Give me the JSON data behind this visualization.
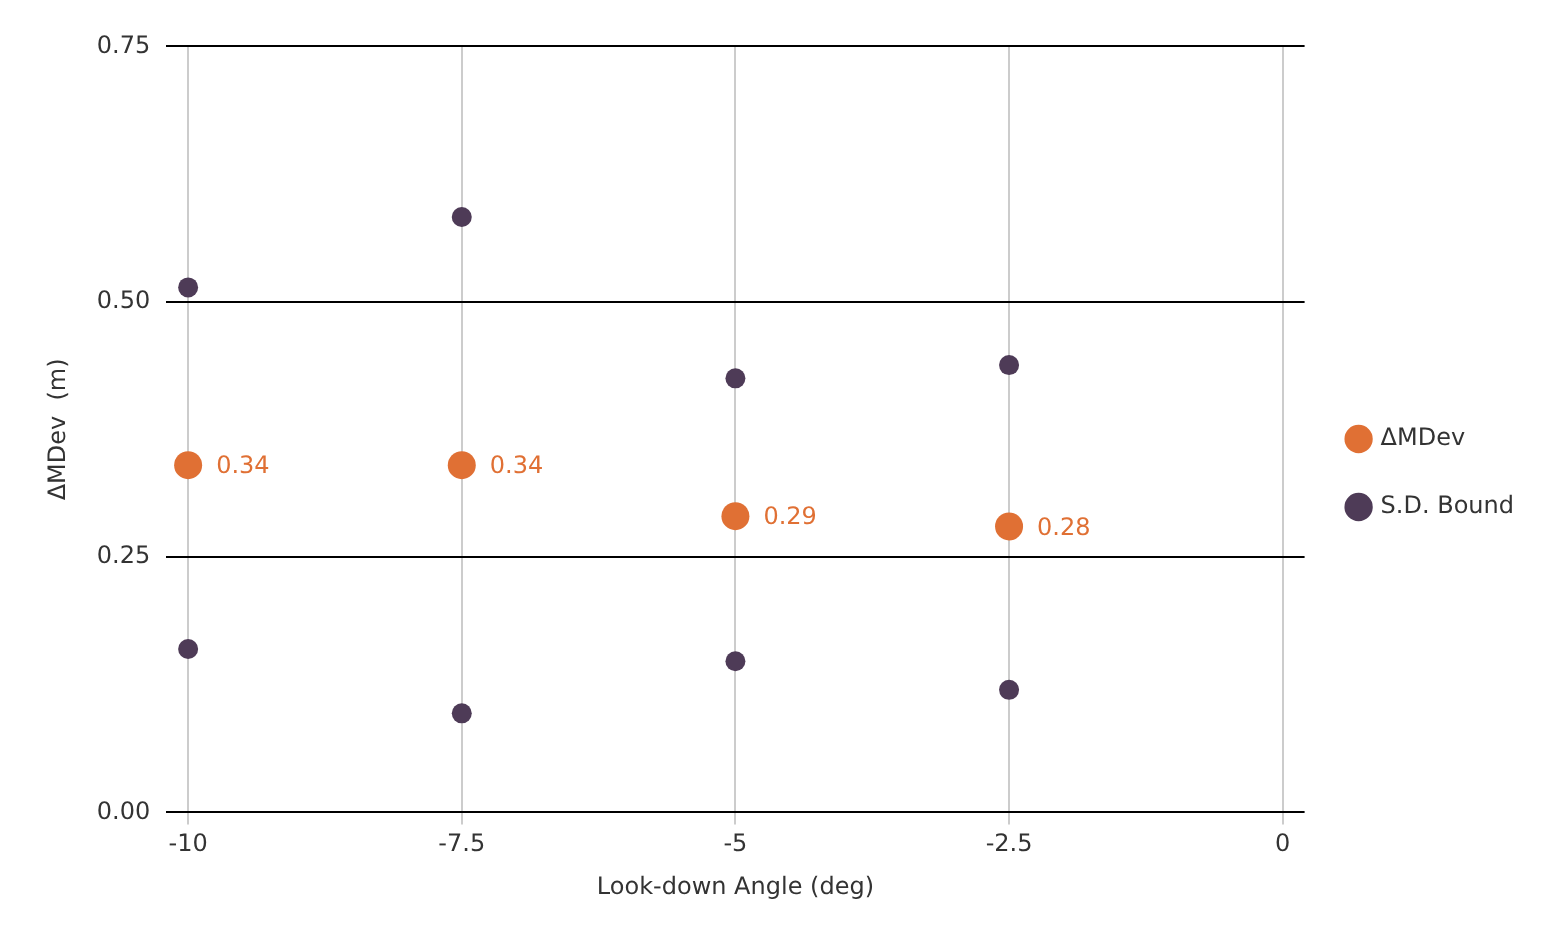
{
  "chart_data": {
    "type": "scatter",
    "xlabel": "Look-down Angle (deg)",
    "ylabel": "ΔMDev  (m)",
    "xlim": [
      -10.2,
      0.2
    ],
    "xticks": [
      -10,
      -7.5,
      -5,
      -2.5,
      0
    ],
    "ylim": [
      0,
      0.75
    ],
    "yticks": [
      {
        "value": 0,
        "label": "0.00"
      },
      {
        "value": 0.25,
        "label": "0.25"
      },
      {
        "value": 0.5,
        "label": "0.50"
      },
      {
        "value": 0.75,
        "label": "0.75"
      }
    ],
    "grid": true,
    "legend": "right",
    "marker": "circle",
    "series": [
      {
        "name": "ΔMDev",
        "color": "#e07034",
        "x": [
          -10,
          -7.5,
          -5,
          -2.5
        ],
        "values": [
          0.34,
          0.34,
          0.29,
          0.28
        ],
        "value_labels": [
          "0.34",
          "0.34",
          "0.29",
          "0.28"
        ]
      },
      {
        "name": "S.D. Bound",
        "color": "#4e3b57",
        "x": [
          -10,
          -7.5,
          -5,
          -2.5,
          -10,
          -7.5,
          -5,
          -2.5
        ],
        "values": [
          0.514,
          0.583,
          0.425,
          0.438,
          0.16,
          0.097,
          0.148,
          0.12
        ]
      }
    ]
  }
}
